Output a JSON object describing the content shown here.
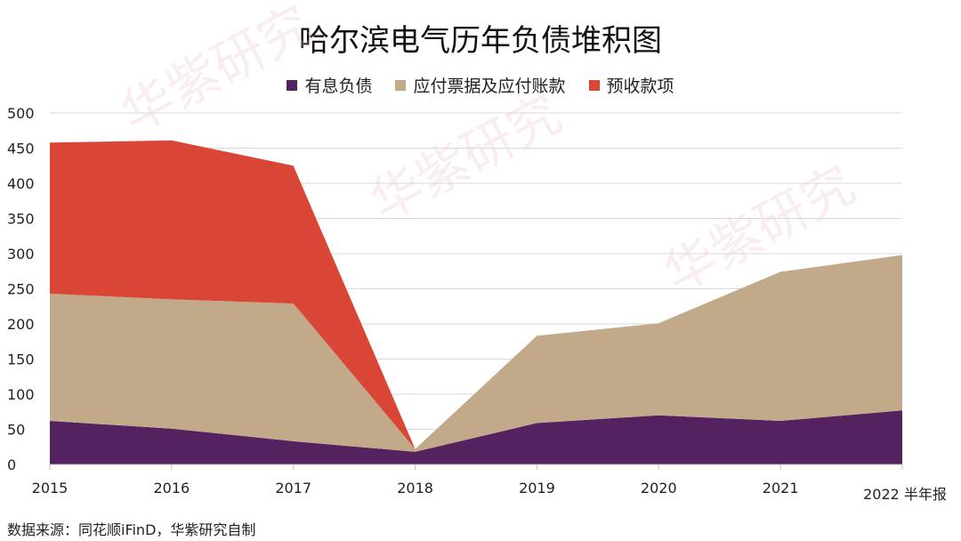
{
  "chart_data": {
    "type": "area",
    "stacked": true,
    "title": "哈尔滨电气历年负债堆积图",
    "categories": [
      "2015",
      "2016",
      "2017",
      "2018",
      "2019",
      "2020",
      "2021",
      "2022 半年报"
    ],
    "series": [
      {
        "name": "有息负债",
        "color": "#54225f",
        "values": [
          62,
          51,
          33,
          18,
          59,
          70,
          62,
          77
        ]
      },
      {
        "name": "应付票据及应付账款",
        "color": "#c2a98a",
        "values": [
          181,
          184,
          196,
          4,
          124,
          131,
          212,
          221
        ]
      },
      {
        "name": "预收款项",
        "color": "#da4636",
        "values": [
          215,
          226,
          196,
          0,
          0,
          0,
          0,
          0
        ]
      }
    ],
    "ylim": [
      0,
      500
    ],
    "yticks": [
      0,
      50,
      100,
      150,
      200,
      250,
      300,
      350,
      400,
      450,
      500
    ],
    "grid": true,
    "legend_position": "top-center",
    "xlabel": "",
    "ylabel": ""
  },
  "source": "数据来源：同花顺iFinD，华紫研究自制",
  "watermark": "华紫研究"
}
